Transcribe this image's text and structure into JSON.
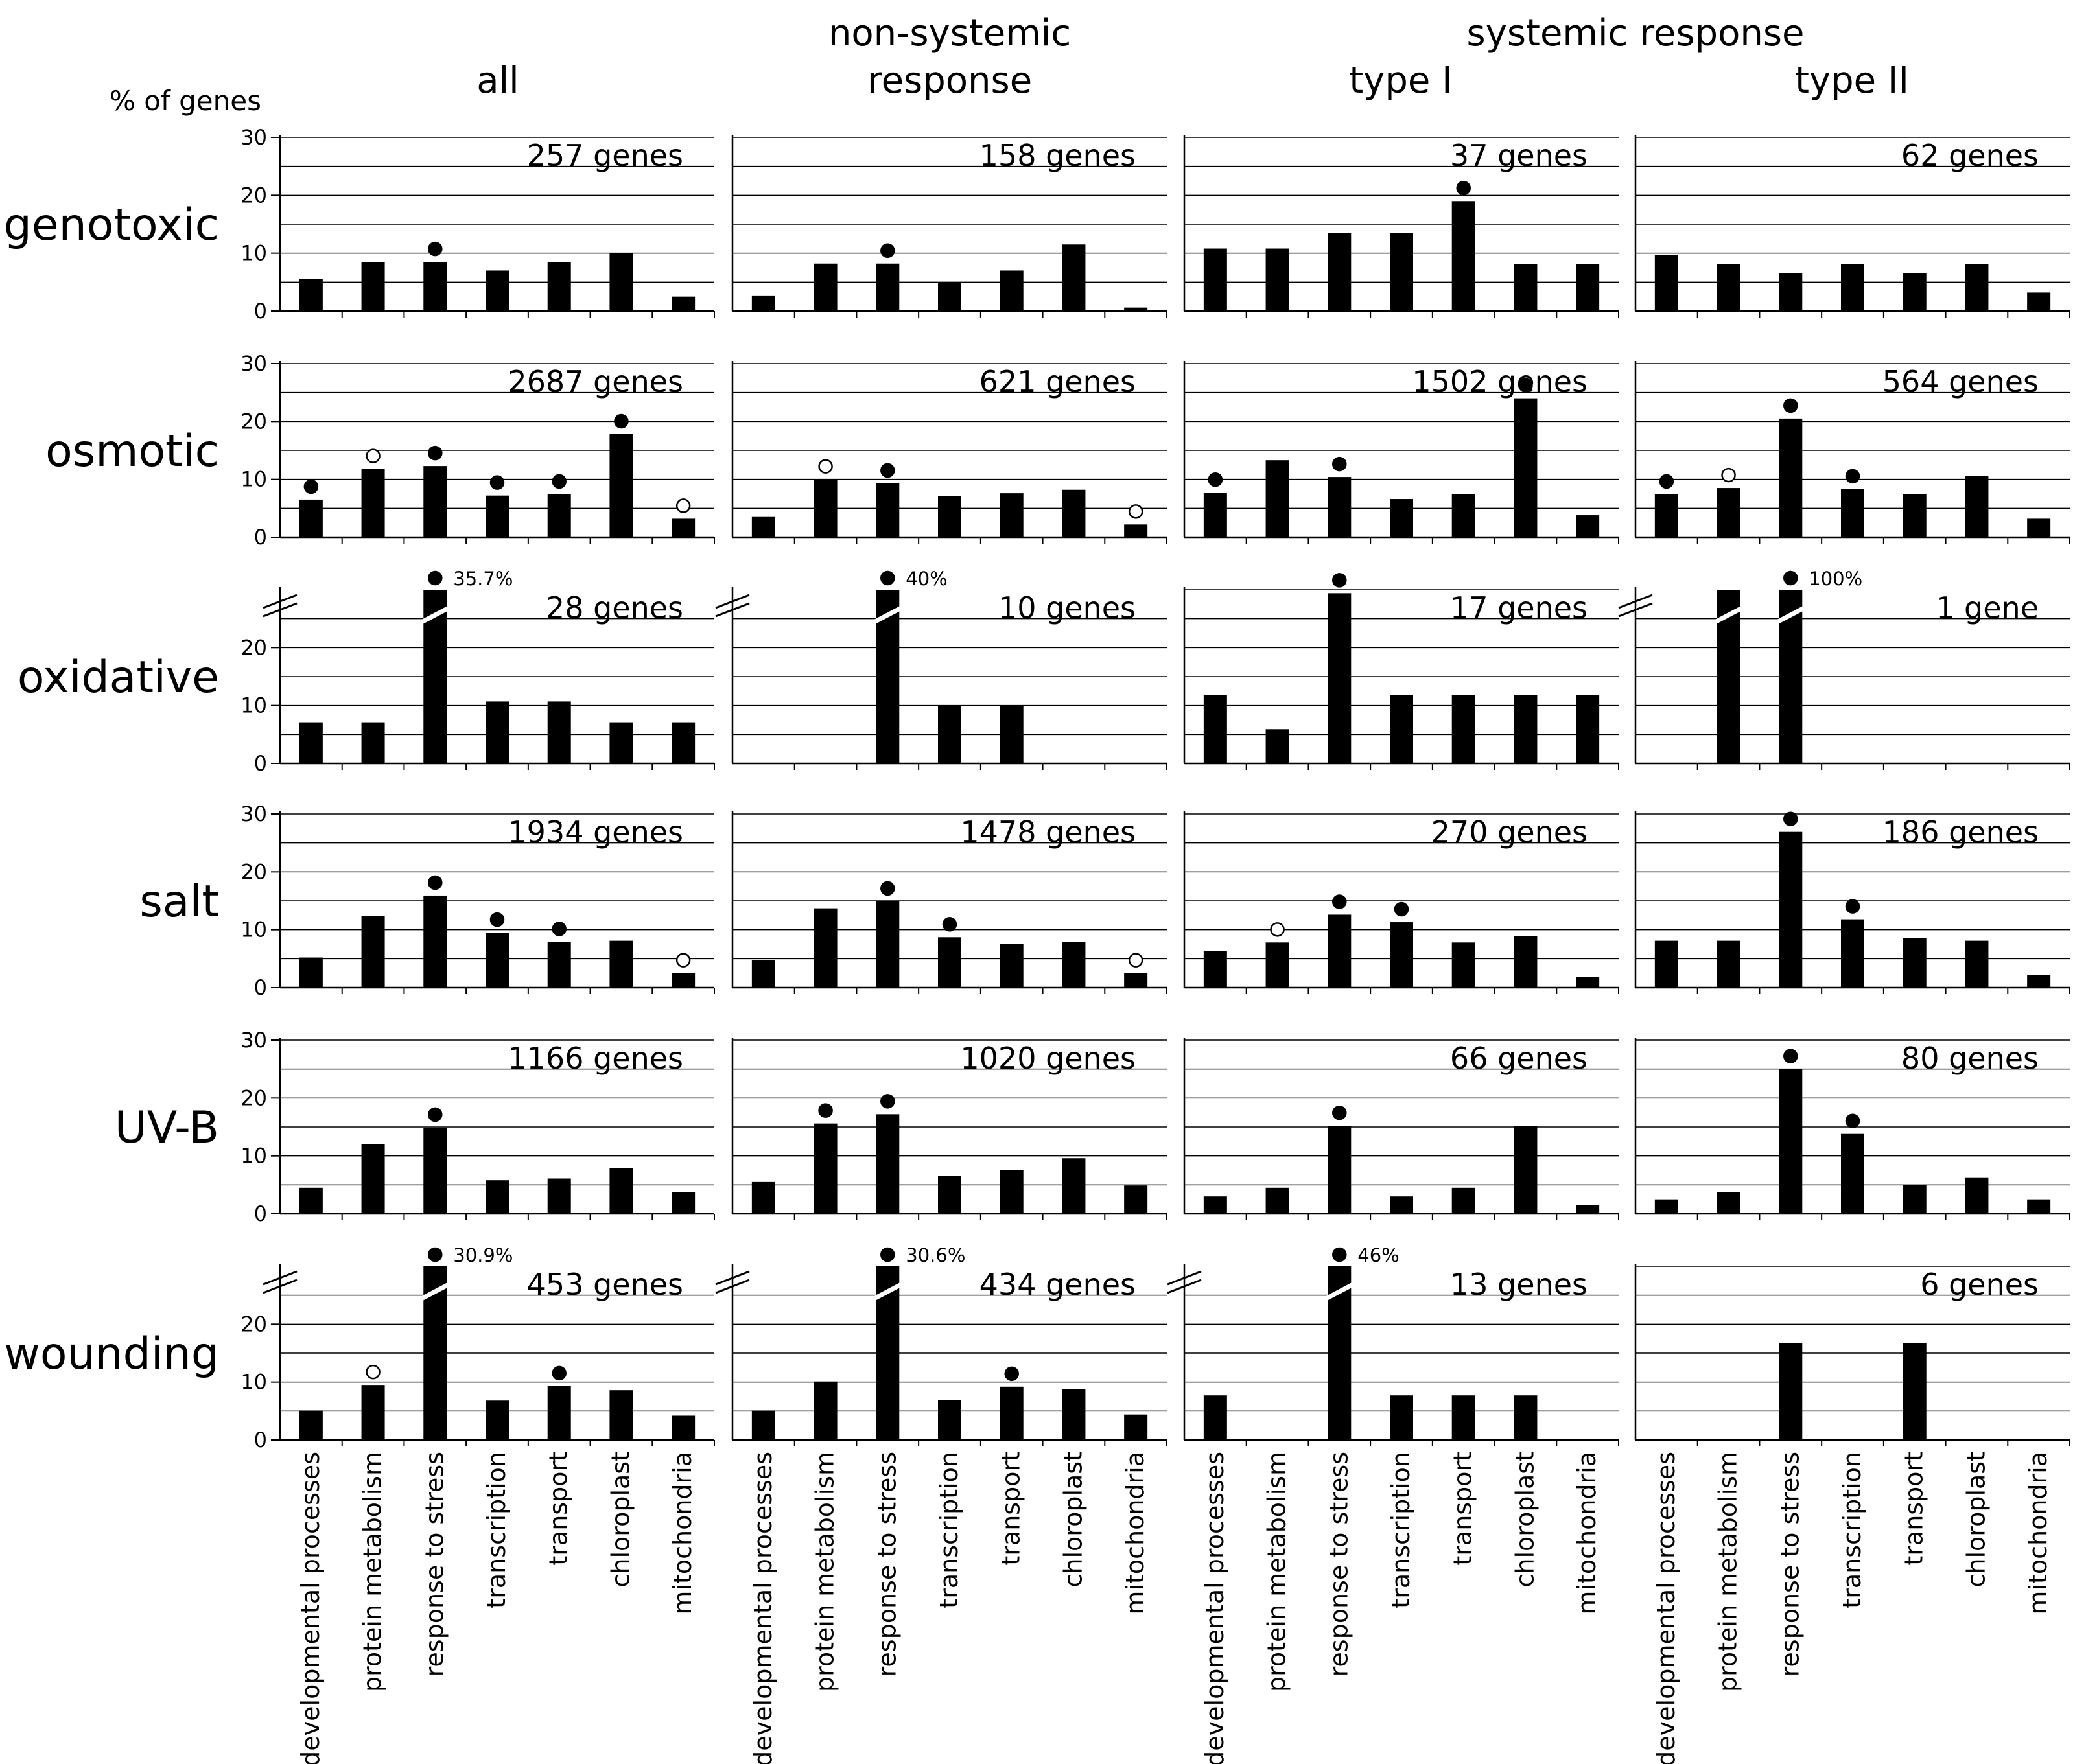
{
  "chart_data": {
    "type": "bar",
    "ylabel": "% of genes",
    "ylim": [
      0,
      30
    ],
    "yticks": [
      "0",
      "10",
      "20",
      "30"
    ],
    "header": {
      "groups": [
        {
          "label": "non-systemic",
          "label2": "response"
        },
        {
          "label": "systemic response"
        }
      ],
      "columns": [
        "all",
        "",
        "type I",
        "type II"
      ]
    },
    "categories": [
      "developmental processes",
      "protein metabolism",
      "response to stress",
      "transcription",
      "transport",
      "chloroplast",
      "mitochondria"
    ],
    "rows": [
      {
        "label": "genotoxic",
        "panels": [
          {
            "count": "257 genes",
            "values": [
              5.5,
              8.5,
              8.5,
              7,
              8.5,
              10,
              2.5
            ],
            "markers": [
              null,
              null,
              "filled",
              null,
              null,
              null,
              null
            ],
            "notes": [
              null,
              null,
              null,
              null,
              null,
              null,
              null
            ],
            "broken": []
          },
          {
            "count": "158 genes",
            "values": [
              2.7,
              8.2,
              8.2,
              5,
              7,
              11.5,
              0.6
            ],
            "markers": [
              null,
              null,
              "filled",
              null,
              null,
              null,
              null
            ],
            "notes": [
              null,
              null,
              null,
              null,
              null,
              null,
              null
            ],
            "broken": []
          },
          {
            "count": "37 genes",
            "values": [
              10.8,
              10.8,
              13.5,
              13.5,
              19,
              8.1,
              8.1
            ],
            "markers": [
              null,
              null,
              null,
              null,
              "filled",
              null,
              null
            ],
            "notes": [
              null,
              null,
              null,
              null,
              null,
              null,
              null
            ],
            "broken": []
          },
          {
            "count": "62 genes",
            "values": [
              9.7,
              8.1,
              6.5,
              8.1,
              6.5,
              8.1,
              3.2
            ],
            "markers": [
              null,
              null,
              null,
              null,
              null,
              null,
              null
            ],
            "notes": [
              null,
              null,
              null,
              null,
              null,
              null,
              null
            ],
            "broken": []
          }
        ]
      },
      {
        "label": "osmotic",
        "panels": [
          {
            "count": "2687 genes",
            "values": [
              6.5,
              11.8,
              12.3,
              7.2,
              7.4,
              17.8,
              3.2
            ],
            "markers": [
              "filled",
              "open",
              "filled",
              "filled",
              "filled",
              "filled",
              "open"
            ],
            "notes": [
              null,
              null,
              null,
              null,
              null,
              null,
              null
            ],
            "broken": []
          },
          {
            "count": "621 genes",
            "values": [
              3.5,
              10,
              9.3,
              7.1,
              7.6,
              8.2,
              2.2
            ],
            "markers": [
              null,
              "open",
              "filled",
              null,
              null,
              null,
              "open"
            ],
            "notes": [
              null,
              null,
              null,
              null,
              null,
              null,
              null
            ],
            "broken": []
          },
          {
            "count": "1502 genes",
            "values": [
              7.7,
              13.3,
              10.4,
              6.6,
              7.4,
              24,
              3.8
            ],
            "markers": [
              "filled",
              null,
              "filled",
              null,
              null,
              "filled",
              null
            ],
            "notes": [
              null,
              null,
              null,
              null,
              null,
              null,
              null
            ],
            "broken": []
          },
          {
            "count": "564 genes",
            "values": [
              7.4,
              8.5,
              20.5,
              8.3,
              7.4,
              10.6,
              3.2
            ],
            "markers": [
              "filled",
              "open",
              "filled",
              "filled",
              null,
              null,
              null
            ],
            "notes": [
              null,
              null,
              null,
              null,
              null,
              null,
              null
            ],
            "broken": []
          }
        ]
      },
      {
        "label": "oxidative",
        "panels": [
          {
            "count": "28 genes",
            "values": [
              7.1,
              7.1,
              35.7,
              10.7,
              10.7,
              7.1,
              7.1
            ],
            "markers": [
              null,
              null,
              "filled",
              null,
              null,
              null,
              null
            ],
            "notes": [
              null,
              null,
              "35.7%",
              null,
              null,
              null,
              null
            ],
            "broken": [
              2
            ]
          },
          {
            "count": "10 genes",
            "values": [
              0,
              0,
              40,
              10,
              10,
              0,
              0
            ],
            "markers": [
              null,
              null,
              "filled",
              null,
              null,
              null,
              null
            ],
            "notes": [
              null,
              null,
              "40%",
              null,
              null,
              null,
              null
            ],
            "broken": [
              2
            ]
          },
          {
            "count": "17 genes",
            "values": [
              11.8,
              5.9,
              29.4,
              11.8,
              11.8,
              11.8,
              11.8
            ],
            "markers": [
              null,
              null,
              "filled",
              null,
              null,
              null,
              null
            ],
            "notes": [
              null,
              null,
              null,
              null,
              null,
              null,
              null
            ],
            "broken": []
          },
          {
            "count": "1 gene",
            "values": [
              0,
              100,
              100,
              0,
              0,
              0,
              0
            ],
            "markers": [
              null,
              null,
              "filled",
              null,
              null,
              null,
              null
            ],
            "notes": [
              null,
              null,
              "100%",
              null,
              null,
              null,
              null
            ],
            "broken": [
              1,
              2
            ]
          }
        ]
      },
      {
        "label": "salt",
        "panels": [
          {
            "count": "1934 genes",
            "values": [
              5.2,
              12.4,
              15.9,
              9.5,
              7.9,
              8.1,
              2.5
            ],
            "markers": [
              null,
              null,
              "filled",
              "filled",
              "filled",
              null,
              "open"
            ],
            "notes": [
              null,
              null,
              null,
              null,
              null,
              null,
              null
            ],
            "broken": []
          },
          {
            "count": "1478 genes",
            "values": [
              4.7,
              13.7,
              14.9,
              8.7,
              7.6,
              7.9,
              2.5
            ],
            "markers": [
              null,
              null,
              "filled",
              "filled",
              null,
              null,
              "open"
            ],
            "notes": [
              null,
              null,
              null,
              null,
              null,
              null,
              null
            ],
            "broken": []
          },
          {
            "count": "270 genes",
            "values": [
              6.3,
              7.8,
              12.6,
              11.3,
              7.8,
              8.9,
              1.9
            ],
            "markers": [
              null,
              "open",
              "filled",
              "filled",
              null,
              null,
              null
            ],
            "notes": [
              null,
              null,
              null,
              null,
              null,
              null,
              null
            ],
            "broken": []
          },
          {
            "count": "186 genes",
            "values": [
              8.1,
              8.1,
              26.9,
              11.8,
              8.6,
              8.1,
              2.2
            ],
            "markers": [
              null,
              null,
              "filled",
              "filled",
              null,
              null,
              null
            ],
            "notes": [
              null,
              null,
              null,
              null,
              null,
              null,
              null
            ],
            "broken": []
          }
        ]
      },
      {
        "label": "UV-B",
        "panels": [
          {
            "count": "1166 genes",
            "values": [
              4.5,
              12,
              14.9,
              5.8,
              6.1,
              7.9,
              3.8
            ],
            "markers": [
              null,
              null,
              "filled",
              null,
              null,
              null,
              null
            ],
            "notes": [
              null,
              null,
              null,
              null,
              null,
              null,
              null
            ],
            "broken": []
          },
          {
            "count": "1020 genes",
            "values": [
              5.5,
              15.6,
              17.2,
              6.6,
              7.5,
              9.6,
              4.9
            ],
            "markers": [
              null,
              "filled",
              "filled",
              null,
              null,
              null,
              null
            ],
            "notes": [
              null,
              null,
              null,
              null,
              null,
              null,
              null
            ],
            "broken": []
          },
          {
            "count": "66 genes",
            "values": [
              3,
              4.5,
              15.2,
              3,
              4.5,
              15.2,
              1.5
            ],
            "markers": [
              null,
              null,
              "filled",
              null,
              null,
              null,
              null
            ],
            "notes": [
              null,
              null,
              null,
              null,
              null,
              null,
              null
            ],
            "broken": []
          },
          {
            "count": "80 genes",
            "values": [
              2.5,
              3.8,
              25,
              13.8,
              5,
              6.3,
              2.5
            ],
            "markers": [
              null,
              null,
              "filled",
              "filled",
              null,
              null,
              null
            ],
            "notes": [
              null,
              null,
              null,
              null,
              null,
              null,
              null
            ],
            "broken": []
          }
        ]
      },
      {
        "label": "wounding",
        "panels": [
          {
            "count": "453 genes",
            "values": [
              5.1,
              9.5,
              30.9,
              6.8,
              9.3,
              8.6,
              4.2
            ],
            "markers": [
              null,
              "open",
              "filled",
              null,
              "filled",
              null,
              null
            ],
            "notes": [
              null,
              null,
              "30.9%",
              null,
              null,
              null,
              null
            ],
            "broken": [
              2
            ]
          },
          {
            "count": "434 genes",
            "values": [
              5.1,
              10.1,
              30.6,
              6.9,
              9.2,
              8.8,
              4.4
            ],
            "markers": [
              null,
              null,
              "filled",
              null,
              "filled",
              null,
              null
            ],
            "notes": [
              null,
              null,
              "30.6%",
              null,
              null,
              null,
              null
            ],
            "broken": [
              2
            ]
          },
          {
            "count": "13 genes",
            "values": [
              7.7,
              0,
              46,
              7.7,
              7.7,
              7.7,
              0
            ],
            "markers": [
              null,
              null,
              "filled",
              null,
              null,
              null,
              null
            ],
            "notes": [
              null,
              null,
              "46%",
              null,
              null,
              null,
              null
            ],
            "broken": [
              2
            ]
          },
          {
            "count": "6 genes",
            "values": [
              0,
              0,
              16.7,
              0,
              16.7,
              0,
              0
            ],
            "markers": [
              null,
              null,
              null,
              null,
              null,
              null,
              null
            ],
            "notes": [
              null,
              null,
              null,
              null,
              null,
              null,
              null
            ],
            "broken": []
          }
        ]
      }
    ]
  }
}
